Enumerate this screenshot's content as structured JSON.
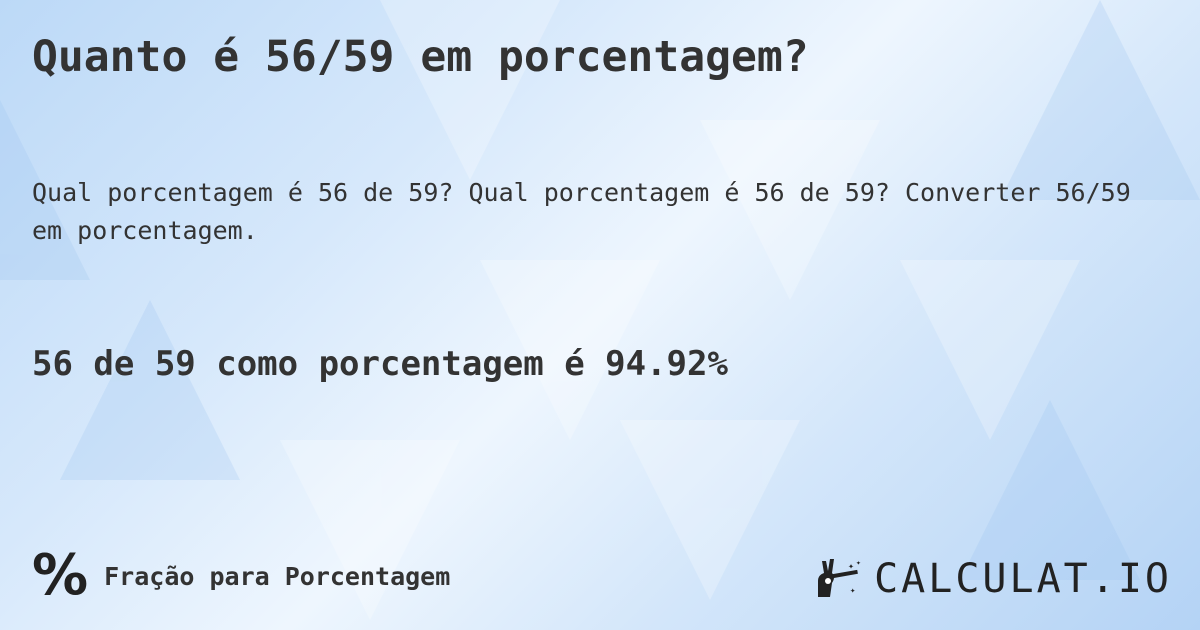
{
  "title": "Quanto é 56/59 em porcentagem?",
  "description": "Qual porcentagem é 56 de 59? Qual porcentagem é 56 de 59? Converter 56/59 em porcentagem.",
  "answer": "56 de 59 como porcentagem é 94.92%",
  "footer": {
    "icon": "percent-icon",
    "icon_glyph": "%",
    "label": "Fração para Porcentagem"
  },
  "logo": {
    "text": "CALCULAT.IO",
    "icon": "magic-hand-icon"
  },
  "colors": {
    "text": "#333333",
    "background": "#cfe4fa"
  }
}
